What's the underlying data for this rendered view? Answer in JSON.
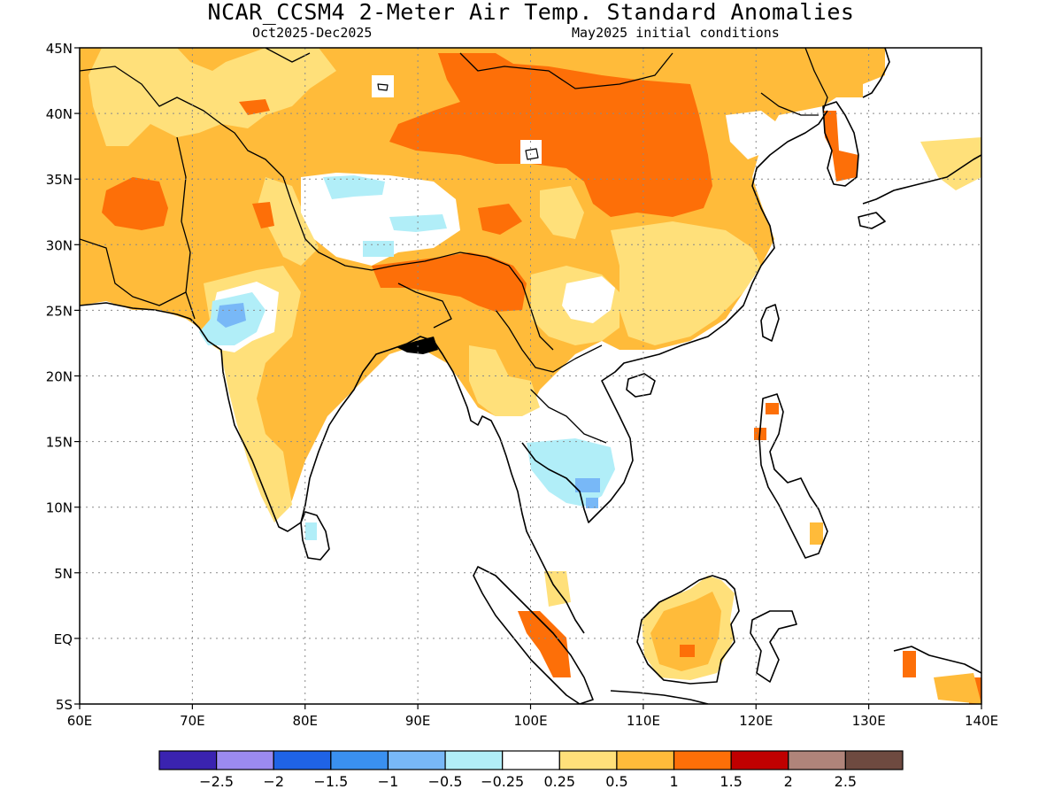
{
  "title": "NCAR_CCSM4 2-Meter Air Temp. Standard Anomalies",
  "subtitle_left": "Oct2025-Dec2025",
  "subtitle_right": "May2025 initial conditions",
  "lon_ticks": [
    {
      "value": 60,
      "label": "60E"
    },
    {
      "value": 70,
      "label": "70E"
    },
    {
      "value": 80,
      "label": "80E"
    },
    {
      "value": 90,
      "label": "90E"
    },
    {
      "value": 100,
      "label": "100E"
    },
    {
      "value": 110,
      "label": "110E"
    },
    {
      "value": 120,
      "label": "120E"
    },
    {
      "value": 130,
      "label": "130E"
    },
    {
      "value": 140,
      "label": "140E"
    }
  ],
  "lat_ticks": [
    {
      "value": 45,
      "label": "45N"
    },
    {
      "value": 40,
      "label": "40N"
    },
    {
      "value": 35,
      "label": "35N"
    },
    {
      "value": 30,
      "label": "30N"
    },
    {
      "value": 25,
      "label": "25N"
    },
    {
      "value": 20,
      "label": "20N"
    },
    {
      "value": 15,
      "label": "15N"
    },
    {
      "value": 10,
      "label": "10N"
    },
    {
      "value": 5,
      "label": "5N"
    },
    {
      "value": 0,
      "label": "EQ"
    },
    {
      "value": -5,
      "label": "5S"
    }
  ],
  "colorbar": {
    "colors": [
      "#3a23b0",
      "#9b8af0",
      "#1f63e6",
      "#3a90f0",
      "#78b8f7",
      "#b1eef8",
      "#ffffff",
      "#ffe07a",
      "#ffbb3a",
      "#fd6f08",
      "#c00000",
      "#b0847a",
      "#6e4a40"
    ],
    "labels": [
      "-2.5",
      "-2",
      "-1.5",
      "-1",
      "-0.5",
      "-0.25",
      "0.25",
      "0.5",
      "1",
      "1.5",
      "2",
      "2.5"
    ]
  },
  "legend": {
    "colors": {
      "light_orange": "#ffbb3a",
      "yellow": "#ffe07a",
      "orange": "#fd6f08",
      "light_blue": "#b1eef8",
      "mid_blue": "#78b8f7",
      "white": "#ffffff"
    }
  }
}
